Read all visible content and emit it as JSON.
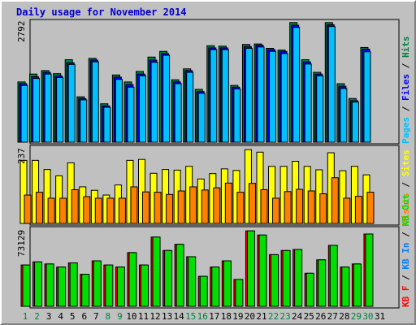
{
  "title": "Daily usage for November 2014",
  "colors": {
    "hits": "#008040",
    "files": "#0000ff",
    "pages": "#00c0ff",
    "visits": "#ffff00",
    "sites": "#ff8000",
    "kbin": "#0080ff",
    "kbout": "#00e000",
    "kbf": "#ff0000",
    "weekday_label": "#008040",
    "weekend_label": "#000000"
  },
  "chart_data": [
    {
      "type": "bar",
      "title": "Pages / Files / Hits",
      "series_labels": [
        "Pages",
        "Files",
        "Hits"
      ],
      "y_max_label": "2792",
      "ylim": [
        0,
        2792
      ],
      "categories": [
        "1",
        "2",
        "3",
        "4",
        "5",
        "6",
        "7",
        "8",
        "9",
        "10",
        "11",
        "12",
        "13",
        "14",
        "15",
        "16",
        "17",
        "18",
        "19",
        "20",
        "21",
        "22",
        "23",
        "24",
        "25",
        "26",
        "27",
        "28",
        "29",
        "30",
        "31"
      ],
      "series": [
        {
          "name": "Hits",
          "values": [
            1380,
            1560,
            1640,
            1570,
            1890,
            1040,
            1920,
            880,
            1540,
            1380,
            1620,
            1950,
            2080,
            1430,
            1680,
            1210,
            2210,
            2200,
            1300,
            2240,
            2250,
            2150,
            2110,
            2740,
            1890,
            1600,
            2740,
            1340,
            1000,
            2170,
            0
          ]
        },
        {
          "name": "Files",
          "values": [
            1340,
            1500,
            1600,
            1520,
            1820,
            1000,
            1880,
            830,
            1490,
            1320,
            1560,
            1880,
            2030,
            1380,
            1640,
            1160,
            2160,
            2160,
            1260,
            2190,
            2220,
            2120,
            2080,
            2680,
            1840,
            1560,
            2690,
            1280,
            950,
            2130,
            0
          ]
        },
        {
          "name": "Pages",
          "values": [
            1300,
            1460,
            1560,
            1480,
            1780,
            970,
            1840,
            800,
            1440,
            1260,
            1520,
            1830,
            1990,
            1340,
            1600,
            1120,
            2120,
            2120,
            1220,
            2150,
            2180,
            2080,
            2030,
            2630,
            1790,
            1520,
            2650,
            1230,
            920,
            2070,
            0
          ]
        }
      ]
    },
    {
      "type": "bar",
      "title": "Visits / Sites",
      "series_labels": [
        "Visits",
        "Sites"
      ],
      "y_max_label": "237",
      "ylim": [
        0,
        237
      ],
      "categories": [
        "1",
        "2",
        "3",
        "4",
        "5",
        "6",
        "7",
        "8",
        "9",
        "10",
        "11",
        "12",
        "13",
        "14",
        "15",
        "16",
        "17",
        "18",
        "19",
        "20",
        "21",
        "22",
        "23",
        "24",
        "25",
        "26",
        "27",
        "28",
        "29",
        "30",
        "31"
      ],
      "series": [
        {
          "name": "Visits",
          "values": [
            200,
            200,
            171,
            151,
            192,
            116,
            105,
            90,
            122,
            200,
            203,
            159,
            171,
            169,
            181,
            141,
            158,
            173,
            168,
            234,
            226,
            181,
            181,
            197,
            181,
            170,
            224,
            167,
            181,
            154,
            0
          ]
        },
        {
          "name": "Sites",
          "values": [
            90,
            99,
            80,
            80,
            107,
            85,
            80,
            80,
            80,
            116,
            100,
            99,
            92,
            103,
            116,
            106,
            113,
            128,
            99,
            127,
            107,
            80,
            101,
            108,
            103,
            94,
            145,
            80,
            86,
            99,
            0
          ]
        }
      ]
    },
    {
      "type": "bar",
      "title": "KB F / KB In / KB Out",
      "series_labels": [
        "KB F",
        "KB In",
        "KB Out"
      ],
      "y_max_label": "73129",
      "ylim": [
        0,
        73129
      ],
      "categories": [
        "1",
        "2",
        "3",
        "4",
        "5",
        "6",
        "7",
        "8",
        "9",
        "10",
        "11",
        "12",
        "13",
        "14",
        "15",
        "16",
        "17",
        "18",
        "19",
        "20",
        "21",
        "22",
        "23",
        "24",
        "25",
        "26",
        "27",
        "28",
        "29",
        "30",
        "31"
      ],
      "series": [
        {
          "name": "KB F",
          "values": [
            40000,
            43000,
            41000,
            38000,
            42000,
            31000,
            44000,
            40000,
            38000,
            52000,
            40000,
            67000,
            54000,
            60000,
            48000,
            29000,
            38000,
            44000,
            26000,
            73000,
            69000,
            50000,
            54000,
            55000,
            32000,
            45000,
            59000,
            38000,
            41000,
            70000,
            0
          ]
        },
        {
          "name": "KB Out",
          "values": [
            40000,
            43000,
            41000,
            38000,
            42000,
            31000,
            44000,
            40000,
            38000,
            52000,
            40000,
            67000,
            54000,
            60000,
            48000,
            29000,
            38000,
            44000,
            26000,
            73000,
            69000,
            50000,
            54000,
            55000,
            32000,
            45000,
            59000,
            38000,
            41000,
            70000,
            0
          ]
        }
      ]
    }
  ],
  "weekend_days": [
    "1",
    "2",
    "8",
    "9",
    "15",
    "16",
    "22",
    "23",
    "29",
    "30"
  ]
}
